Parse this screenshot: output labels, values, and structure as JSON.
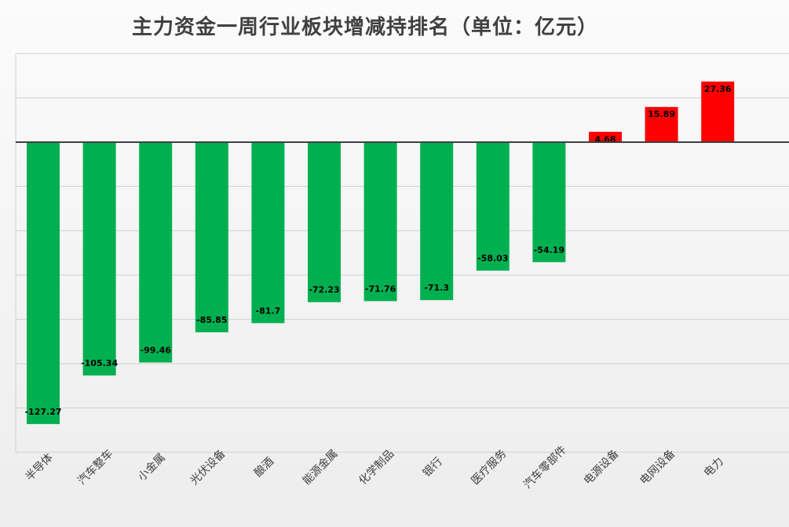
{
  "chart_data": {
    "type": "bar",
    "title": "主力资金一周行业板块增减持排名（单位：亿元）",
    "xlabel": "",
    "ylabel": "",
    "categories": [
      "半导体",
      "汽车整车",
      "小金属",
      "光伏设备",
      "酿酒",
      "能源金属",
      "化学制品",
      "银行",
      "医疗服务",
      "汽车零部件",
      "电源设备",
      "电网设备",
      "电力"
    ],
    "values": [
      -127.27,
      -105.34,
      -99.46,
      -85.85,
      -81.7,
      -72.23,
      -71.76,
      -71.3,
      -58.03,
      -54.19,
      4.68,
      15.89,
      27.36
    ],
    "value_labels": [
      "-127.27",
      "-105.34",
      "-99.46",
      "-85.85",
      "-81.7",
      "-72.23",
      "-71.76",
      "-71.3",
      "-58.03",
      "-54.19",
      "4.68",
      "15.89",
      "27.36"
    ],
    "ylim": [
      -140,
      40
    ],
    "grid": true,
    "legend": "none",
    "colors": {
      "negative": "#00b050",
      "positive": "#ff0000",
      "axis": "#404040",
      "grid": "#d0d0d0"
    }
  }
}
